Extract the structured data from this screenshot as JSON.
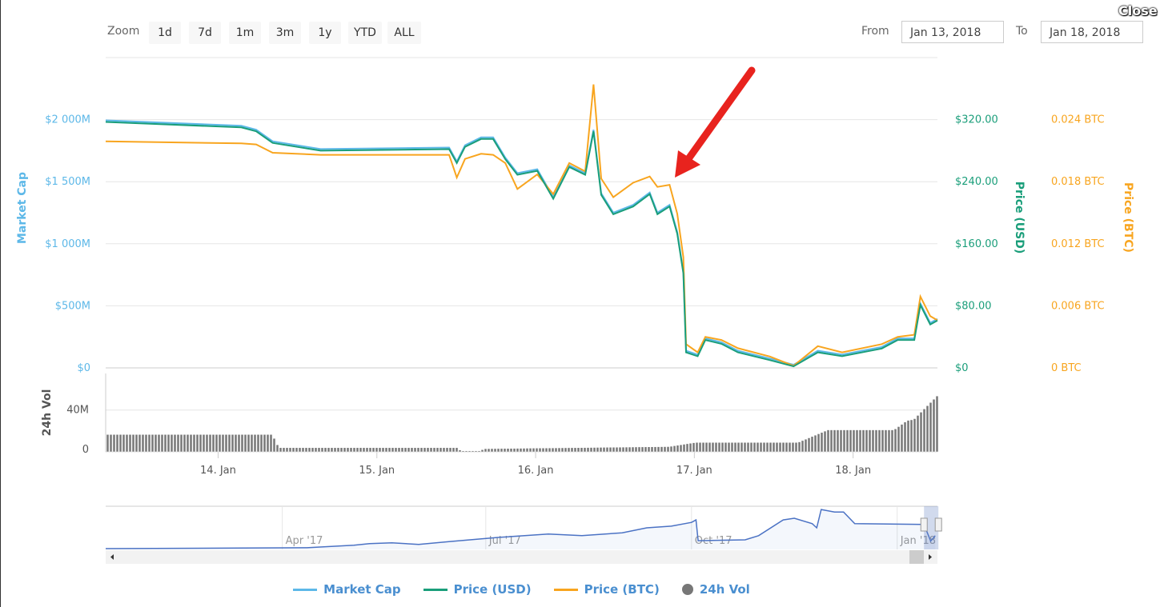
{
  "toolbar": {
    "zoom_label": "Zoom",
    "buttons": [
      "1d",
      "7d",
      "1m",
      "3m",
      "1y",
      "YTD",
      "ALL"
    ],
    "from_label": "From",
    "from_value": "Jan 13, 2018",
    "to_label": "To",
    "to_value": "Jan 18, 2018",
    "close_label": "Close"
  },
  "colors": {
    "market_cap": "#5db8e8",
    "price_usd": "#1a9e7a",
    "price_btc": "#f8a51f",
    "volume": "#777777",
    "navigator": "#4b72c4",
    "arrow": "#e8231e"
  },
  "legend": [
    {
      "label": "Market Cap",
      "icon": "line"
    },
    {
      "label": "Price (USD)",
      "icon": "line"
    },
    {
      "label": "Price (BTC)",
      "icon": "line"
    },
    {
      "label": "24h Vol",
      "icon": "circle"
    }
  ],
  "chart_data": {
    "type": "line",
    "x_range": [
      "2018-01-13T07:00",
      "2018-01-18T12:45"
    ],
    "x_ticks": [
      "14. Jan",
      "15. Jan",
      "16. Jan",
      "17. Jan",
      "18. Jan"
    ],
    "axes": {
      "market_cap": {
        "title": "Market Cap",
        "ticks": [
          "$0",
          "$500M",
          "$1 000M",
          "$1 500M",
          "$2 000M"
        ],
        "range": [
          0,
          2500
        ]
      },
      "price_usd": {
        "title": "Price (USD)",
        "ticks": [
          "$0",
          "$80.00",
          "$160.00",
          "$240.00",
          "$320.00"
        ],
        "range": [
          0,
          400
        ]
      },
      "price_btc": {
        "title": "Price (BTC)",
        "ticks": [
          "0 BTC",
          "0.006 BTC",
          "0.012 BTC",
          "0.018 BTC",
          "0.024 BTC"
        ],
        "range": [
          0,
          0.03
        ]
      },
      "volume": {
        "title": "24h Vol",
        "ticks": [
          "0",
          "40M"
        ],
        "range": [
          0,
          75
        ]
      }
    },
    "series_points": [
      [
        "2018-01-13T07:00",
        317,
        0.0219
      ],
      [
        "2018-01-14T03:30",
        310,
        0.0217
      ],
      [
        "2018-01-14T05:45",
        305,
        0.0216
      ],
      [
        "2018-01-14T08:15",
        290,
        0.0208
      ],
      [
        "2018-01-14T15:30",
        280,
        0.0206
      ],
      [
        "2018-01-15T10:55",
        282,
        0.0206
      ],
      [
        "2018-01-15T12:05",
        264,
        0.0184
      ],
      [
        "2018-01-15T13:20",
        285,
        0.0202
      ],
      [
        "2018-01-15T15:45",
        295,
        0.0207
      ],
      [
        "2018-01-15T17:35",
        295,
        0.0206
      ],
      [
        "2018-01-15T19:25",
        269,
        0.0198
      ],
      [
        "2018-01-15T21:15",
        249,
        0.0173
      ],
      [
        "2018-01-16T00:15",
        254,
        0.0187
      ],
      [
        "2018-01-16T02:40",
        218,
        0.0168
      ],
      [
        "2018-01-16T05:05",
        259,
        0.0198
      ],
      [
        "2018-01-16T07:30",
        249,
        0.019
      ],
      [
        "2018-01-16T08:45",
        305,
        0.0274
      ],
      [
        "2018-01-16T09:55",
        223,
        0.0183
      ],
      [
        "2018-01-16T11:45",
        198,
        0.0165
      ],
      [
        "2018-01-16T14:45",
        208,
        0.0179
      ],
      [
        "2018-01-16T17:15",
        224,
        0.0185
      ],
      [
        "2018-01-16T18:25",
        198,
        0.0175
      ],
      [
        "2018-01-16T20:15",
        208,
        0.0177
      ],
      [
        "2018-01-16T21:25",
        173,
        0.0149
      ],
      [
        "2018-01-16T22:20",
        122,
        0.0107
      ],
      [
        "2018-01-16T22:45",
        20,
        0.0023
      ],
      [
        "2018-01-17T00:30",
        15,
        0.0015
      ],
      [
        "2018-01-17T01:40",
        36,
        0.003
      ],
      [
        "2018-01-17T04:05",
        31,
        0.0027
      ],
      [
        "2018-01-17T06:35",
        20,
        0.0019
      ],
      [
        "2018-01-17T11:25",
        10,
        0.0011
      ],
      [
        "2018-01-17T15:00",
        2,
        0.0002
      ],
      [
        "2018-01-17T18:40",
        20,
        0.0021
      ],
      [
        "2018-01-17T22:20",
        15,
        0.0015
      ],
      [
        "2018-01-18T04:20",
        25,
        0.0023
      ],
      [
        "2018-01-18T06:45",
        36,
        0.003
      ],
      [
        "2018-01-18T09:15",
        36,
        0.0032
      ],
      [
        "2018-01-18T10:10",
        81,
        0.0069
      ],
      [
        "2018-01-18T11:40",
        56,
        0.005
      ],
      [
        "2018-01-18T12:45",
        61,
        0.0046
      ]
    ],
    "volume_points": [
      [
        "2018-01-13T07:00",
        16.6
      ],
      [
        "2018-01-14T08:00",
        16.6
      ],
      [
        "2018-01-14T09:00",
        4
      ],
      [
        "2018-01-15T12:00",
        4
      ],
      [
        "2018-01-15T12:30",
        1
      ],
      [
        "2018-01-15T15:30",
        1
      ],
      [
        "2018-01-15T16:00",
        3
      ],
      [
        "2018-01-16T20:00",
        5
      ],
      [
        "2018-01-17T00:00",
        9
      ],
      [
        "2018-01-17T15:30",
        9
      ],
      [
        "2018-01-17T20:00",
        21
      ],
      [
        "2018-01-18T06:00",
        21
      ],
      [
        "2018-01-18T08:00",
        30
      ],
      [
        "2018-01-18T09:00",
        31
      ],
      [
        "2018-01-18T12:45",
        55
      ]
    ],
    "navigator": {
      "ticks": [
        "Apr '17",
        "Jul '17",
        "Oct '17",
        "Jan '18"
      ],
      "range": [
        "2017-01-12",
        "2018-01-19"
      ],
      "points": [
        [
          "2017-01-12",
          0.02
        ],
        [
          "2017-04-12",
          0.04
        ],
        [
          "2017-05-03",
          0.1
        ],
        [
          "2017-05-10",
          0.14
        ],
        [
          "2017-05-20",
          0.16
        ],
        [
          "2017-06-01",
          0.12
        ],
        [
          "2017-06-15",
          0.19
        ],
        [
          "2017-07-07",
          0.29
        ],
        [
          "2017-07-29",
          0.37
        ],
        [
          "2017-08-13",
          0.33
        ],
        [
          "2017-08-31",
          0.4
        ],
        [
          "2017-09-11",
          0.52
        ],
        [
          "2017-09-22",
          0.56
        ],
        [
          "2017-10-01",
          0.65
        ],
        [
          "2017-10-03",
          0.71
        ],
        [
          "2017-10-04",
          0.21
        ],
        [
          "2017-10-25",
          0.23
        ],
        [
          "2017-10-31",
          0.33
        ],
        [
          "2017-11-11",
          0.71
        ],
        [
          "2017-11-16",
          0.75
        ],
        [
          "2017-11-24",
          0.62
        ],
        [
          "2017-11-26",
          0.52
        ],
        [
          "2017-11-28",
          0.96
        ],
        [
          "2017-12-04",
          0.9
        ],
        [
          "2017-12-08",
          0.9
        ],
        [
          "2017-12-13",
          0.62
        ],
        [
          "2018-01-13",
          0.6
        ],
        [
          "2018-01-16",
          0.2
        ],
        [
          "2018-01-18",
          0.33
        ]
      ],
      "selected": [
        "2018-01-13",
        "2018-01-18"
      ]
    }
  }
}
